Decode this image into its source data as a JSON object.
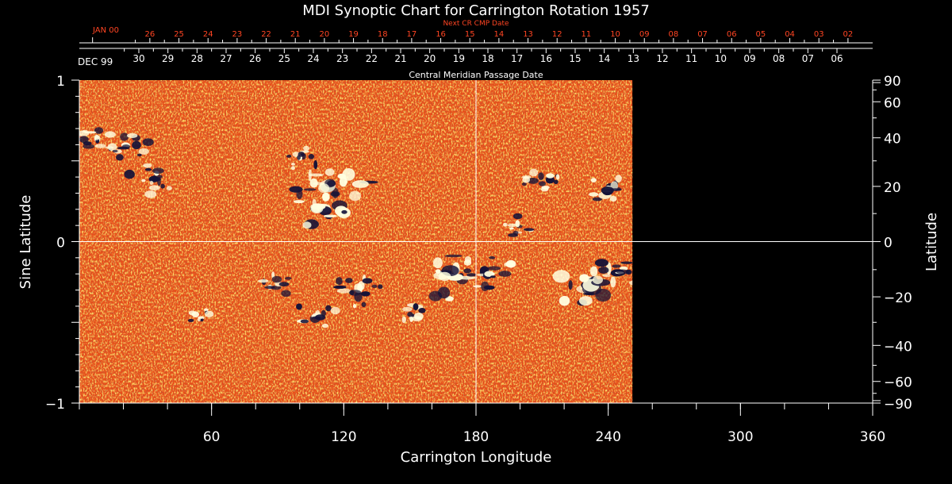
{
  "chart_data": {
    "type": "heatmap",
    "title": "MDI Synoptic Chart for Carrington Rotation 1957",
    "xlabel": "Carrington Longitude",
    "ylabel_left": "Sine Latitude",
    "ylabel_right": "Latitude",
    "xlim": [
      0,
      360
    ],
    "ylim": [
      -1,
      1
    ],
    "data_extent_longitude": [
      0,
      251
    ],
    "x_ticks": [
      {
        "value": 60,
        "label": "60"
      },
      {
        "value": 120,
        "label": "120"
      },
      {
        "value": 180,
        "label": "180"
      },
      {
        "value": 240,
        "label": "240"
      },
      {
        "value": 300,
        "label": "300"
      },
      {
        "value": 360,
        "label": "360"
      }
    ],
    "y_left_ticks": [
      {
        "value": 1,
        "label": "1"
      },
      {
        "value": 0,
        "label": "0"
      },
      {
        "value": -1,
        "label": "−1"
      }
    ],
    "y_right_ticks": [
      {
        "deg": 90,
        "label": "90"
      },
      {
        "deg": 60,
        "label": "60"
      },
      {
        "deg": 40,
        "label": "40"
      },
      {
        "deg": 20,
        "label": "20"
      },
      {
        "deg": 0,
        "label": "0"
      },
      {
        "deg": -20,
        "label": "−20"
      },
      {
        "deg": -40,
        "label": "−40"
      },
      {
        "deg": -60,
        "label": "−60"
      },
      {
        "deg": -90,
        "label": "−90"
      }
    ],
    "cmp_axis": {
      "title": "Central Meridian Passage Date",
      "month_label": "DEC 99",
      "dates": [
        "30",
        "29",
        "28",
        "27",
        "26",
        "25",
        "24",
        "23",
        "22",
        "21",
        "20",
        "19",
        "18",
        "17",
        "16",
        "15",
        "14",
        "13",
        "12",
        "11",
        "10",
        "09",
        "08",
        "07",
        "06"
      ],
      "first_date_longitude": 27,
      "spacing_deg": 13.2
    },
    "next_cr_axis": {
      "title": "Next CR CMP Date",
      "month_label": "JAN 00",
      "dates": [
        "26",
        "25",
        "24",
        "23",
        "22",
        "21",
        "20",
        "19",
        "18",
        "17",
        "16",
        "15",
        "14",
        "13",
        "12",
        "11",
        "10",
        "09",
        "08",
        "07",
        "06",
        "05",
        "04",
        "03",
        "02"
      ],
      "first_date_longitude": 32,
      "spacing_deg": 13.2
    },
    "active_regions": [
      {
        "lon": 8,
        "sinlat": 0.62,
        "polarity": "mixed",
        "size": 1.0
      },
      {
        "lon": 22,
        "sinlat": 0.6,
        "polarity": "mixed",
        "size": 1.0
      },
      {
        "lon": 32,
        "sinlat": 0.38,
        "polarity": "mixed",
        "size": 1.1
      },
      {
        "lon": 114,
        "sinlat": 0.36,
        "polarity": "mixed",
        "size": 1.7
      },
      {
        "lon": 108,
        "sinlat": 0.2,
        "polarity": "mixed",
        "size": 1.3
      },
      {
        "lon": 100,
        "sinlat": 0.52,
        "polarity": "mixed",
        "size": 0.8
      },
      {
        "lon": 210,
        "sinlat": 0.35,
        "polarity": "mixed",
        "size": 1.0
      },
      {
        "lon": 240,
        "sinlat": 0.32,
        "polarity": "mixed",
        "size": 1.1
      },
      {
        "lon": 200,
        "sinlat": 0.1,
        "polarity": "mixed",
        "size": 0.8
      },
      {
        "lon": 170,
        "sinlat": -0.22,
        "polarity": "mixed",
        "size": 1.6
      },
      {
        "lon": 186,
        "sinlat": -0.2,
        "polarity": "mixed",
        "size": 1.2
      },
      {
        "lon": 125,
        "sinlat": -0.3,
        "polarity": "mixed",
        "size": 1.2
      },
      {
        "lon": 108,
        "sinlat": -0.45,
        "polarity": "mixed",
        "size": 1.0
      },
      {
        "lon": 90,
        "sinlat": -0.27,
        "polarity": "mixed",
        "size": 0.8
      },
      {
        "lon": 55,
        "sinlat": -0.47,
        "polarity": "mixed",
        "size": 0.7
      },
      {
        "lon": 232,
        "sinlat": -0.27,
        "polarity": "mixed",
        "size": 1.7
      },
      {
        "lon": 245,
        "sinlat": -0.18,
        "polarity": "mixed",
        "size": 1.2
      },
      {
        "lon": 150,
        "sinlat": -0.45,
        "polarity": "mixed",
        "size": 0.8
      }
    ],
    "colors": {
      "background": "#000000",
      "field_base": "#e8501a",
      "positive": "#ffffe0",
      "negative": "#141238",
      "axis": "#ffffff",
      "next_cr": "#ff4422"
    }
  }
}
